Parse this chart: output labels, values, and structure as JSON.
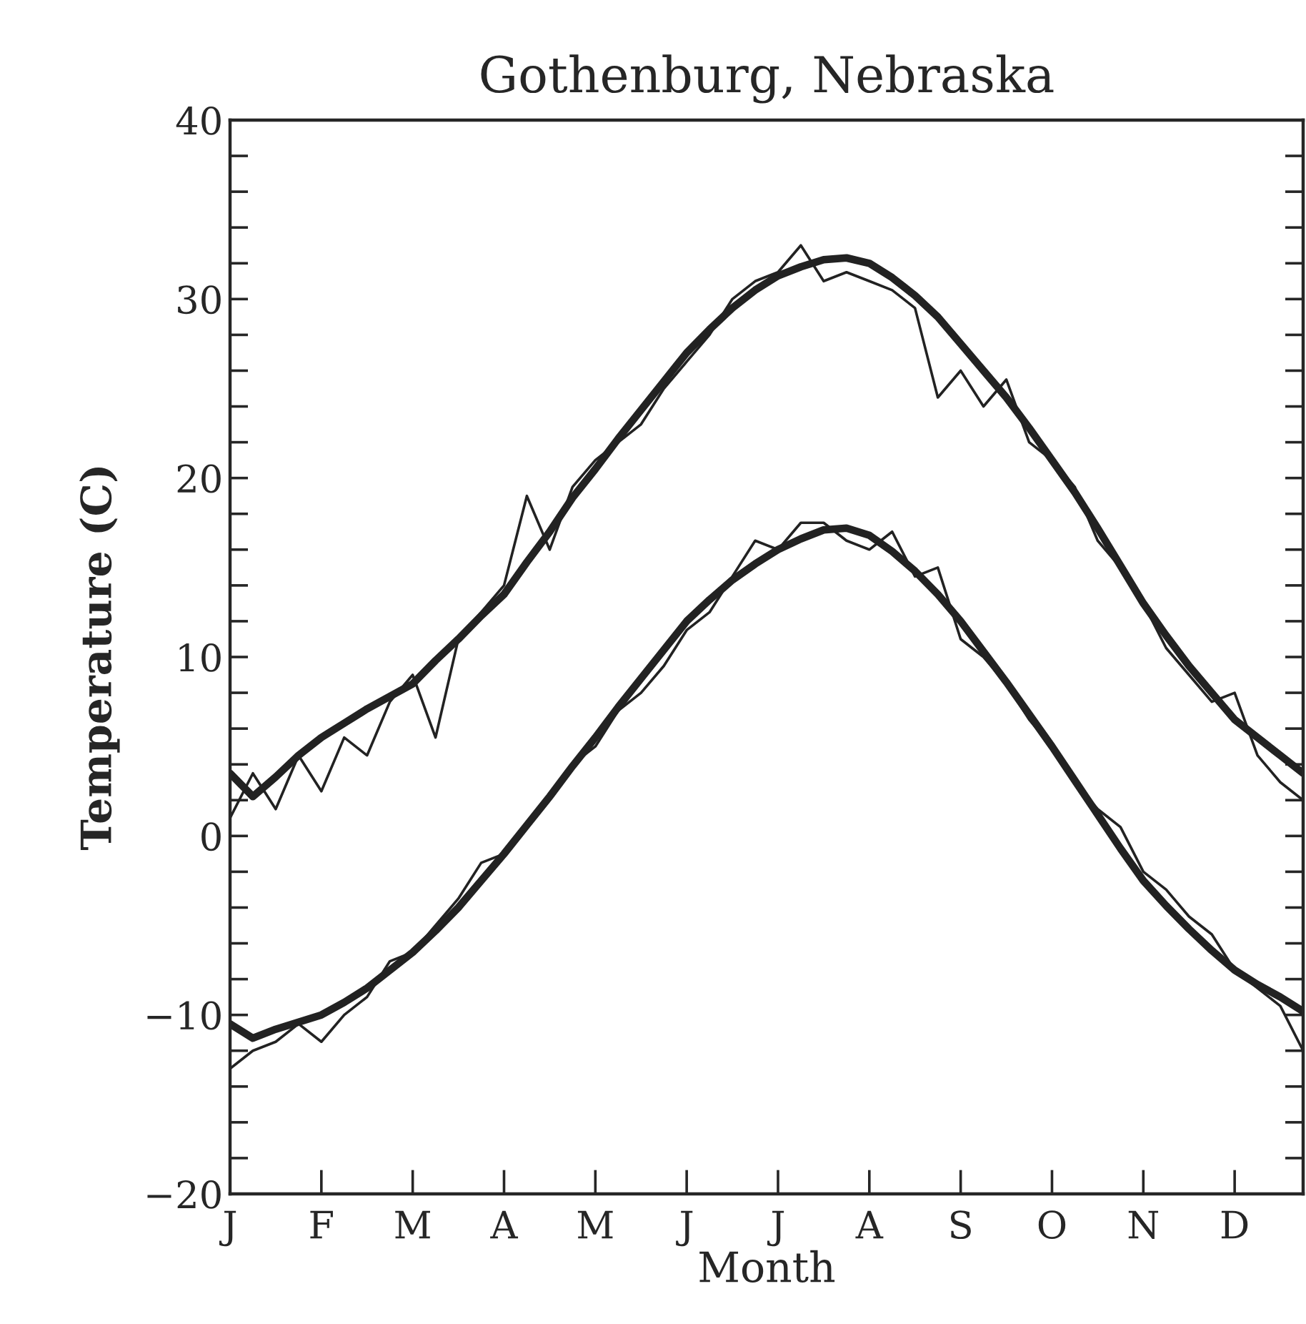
{
  "chart_data": {
    "type": "line",
    "title": "Gothenburg, Nebraska",
    "xlabel": "Month",
    "ylabel": "Temperature (C)",
    "categories": [
      "J",
      null,
      null,
      null,
      "F",
      null,
      null,
      null,
      "M",
      null,
      null,
      null,
      "A",
      null,
      null,
      null,
      "M",
      null,
      null,
      null,
      "J",
      null,
      null,
      null,
      "J",
      null,
      null,
      null,
      "A",
      null,
      null,
      null,
      "S",
      null,
      null,
      null,
      "O",
      null,
      null,
      null,
      "N",
      null,
      null,
      null,
      "D",
      null,
      null,
      null
    ],
    "ylim": [
      -20,
      40
    ],
    "yticks": [
      {
        "value": -20,
        "label": "−20"
      },
      {
        "value": -18,
        "label": null
      },
      {
        "value": -16,
        "label": null
      },
      {
        "value": -14,
        "label": null
      },
      {
        "value": -12,
        "label": null
      },
      {
        "value": -10,
        "label": "−10"
      },
      {
        "value": -8,
        "label": null
      },
      {
        "value": -6,
        "label": null
      },
      {
        "value": -4,
        "label": null
      },
      {
        "value": -2,
        "label": null
      },
      0,
      {
        "value": 2,
        "label": null
      },
      {
        "value": 4,
        "label": null
      },
      {
        "value": 6,
        "label": null
      },
      {
        "value": 8,
        "label": null
      },
      10,
      {
        "value": 12,
        "label": null
      },
      {
        "value": 14,
        "label": null
      },
      {
        "value": 16,
        "label": null
      },
      {
        "value": 18,
        "label": null
      },
      20,
      {
        "value": 22,
        "label": null
      },
      {
        "value": 24,
        "label": null
      },
      {
        "value": 26,
        "label": null
      },
      {
        "value": 28,
        "label": null
      },
      30,
      {
        "value": 32,
        "label": null
      },
      {
        "value": 34,
        "label": null
      },
      {
        "value": 36,
        "label": null
      },
      {
        "value": 38,
        "label": null
      },
      40
    ],
    "grid": false,
    "legend": false,
    "marker": "none",
    "line_style": "solid",
    "series": [
      {
        "color": "#222222",
        "values": [
          1.0,
          3.5,
          1.5,
          4.5,
          2.5,
          5.5,
          4.5,
          7.5,
          9.0,
          5.5,
          11,
          12.5,
          14,
          19,
          16,
          19.5,
          21,
          22,
          23,
          25,
          26.5,
          28,
          30,
          31,
          31.5,
          33,
          31,
          31.5,
          31,
          30.5,
          29.5,
          24.5,
          26,
          24,
          25.5,
          22,
          21,
          19.5,
          16.5,
          15,
          13,
          10.5,
          9,
          7.5,
          8,
          4.5,
          3,
          2
        ]
      },
      {
        "color": "#222222",
        "values": [
          -13,
          -12,
          -11.5,
          -10.5,
          -11.5,
          -10,
          -9,
          -7,
          -6.5,
          -5,
          -3.5,
          -1.5,
          -1,
          0.5,
          2,
          4,
          5,
          7,
          8,
          9.5,
          11.5,
          12.5,
          14.5,
          16.5,
          16,
          17.5,
          17.5,
          16.5,
          16,
          17,
          14.5,
          15,
          11,
          10,
          8.5,
          6.5,
          5,
          3,
          1.5,
          0.5,
          -2,
          -3,
          -4.5,
          -5.5,
          -7.5,
          -8.5,
          -9.5,
          -12
        ]
      },
      {
        "color": "#222222",
        "values": [
          3.5,
          2.2,
          3.3,
          4.5,
          5.5,
          6.3,
          7.1,
          7.8,
          8.5,
          9.8,
          11,
          12.3,
          13.5,
          15.3,
          17,
          18.9,
          20.5,
          22.2,
          23.8,
          25.4,
          27,
          28.3,
          29.5,
          30.5,
          31.3,
          31.8,
          32.2,
          32.3,
          32,
          31.2,
          30.2,
          29,
          27.5,
          26,
          24.5,
          22.8,
          21,
          19.2,
          17.2,
          15.1,
          13,
          11.2,
          9.5,
          8,
          6.5,
          5.5,
          4.5,
          3.5
        ]
      },
      {
        "color": "#222222",
        "values": [
          -10.5,
          -11.3,
          -10.8,
          -10.4,
          -10,
          -9.3,
          -8.5,
          -7.5,
          -6.5,
          -5.3,
          -4,
          -2.5,
          -1,
          0.6,
          2.2,
          3.9,
          5.5,
          7.2,
          8.8,
          10.4,
          12,
          13.2,
          14.3,
          15.2,
          16,
          16.6,
          17.1,
          17.2,
          16.8,
          15.9,
          14.8,
          13.5,
          12,
          10.3,
          8.6,
          6.8,
          5,
          3.1,
          1.2,
          -0.7,
          -2.5,
          -3.9,
          -5.2,
          -6.4,
          -7.5,
          -8.3,
          -9,
          -9.8
        ]
      }
    ]
  }
}
